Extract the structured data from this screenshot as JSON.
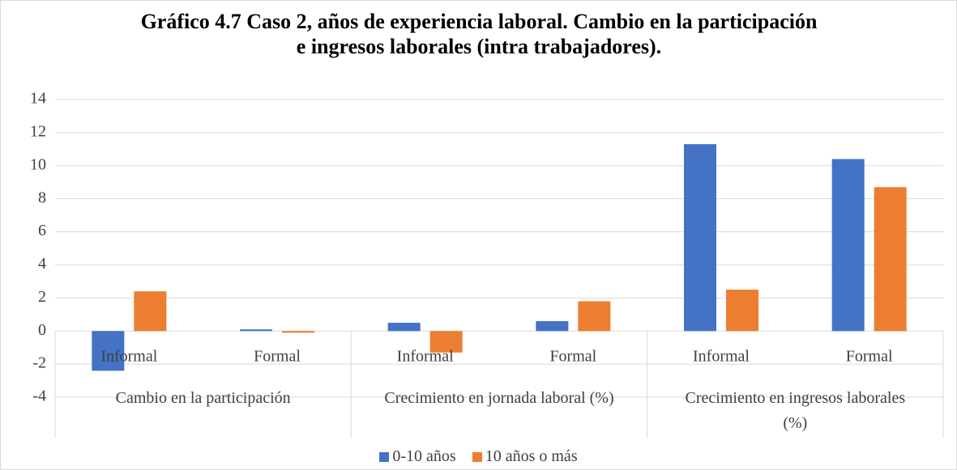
{
  "chart_data": {
    "type": "bar",
    "title": "Gráfico 4.7 Caso 2, años de experiencia laboral. Cambio en la participación e ingresos laborales (intra trabajadores).",
    "groups": [
      "Cambio en la participación",
      "Crecimiento en jornada laboral (%)",
      "Crecimiento en ingresos laborales (%)"
    ],
    "categories": [
      "Informal",
      "Formal",
      "Informal",
      "Formal",
      "Informal",
      "Formal"
    ],
    "series": [
      {
        "name": "0-10 años",
        "color": "#4472c4",
        "values": [
          -2.4,
          0.1,
          0.5,
          0.6,
          11.3,
          10.4
        ]
      },
      {
        "name": "10 años o más",
        "color": "#ed7d31",
        "values": [
          2.4,
          -0.1,
          -1.3,
          1.8,
          2.5,
          8.7
        ]
      }
    ],
    "ylim": [
      -4,
      14
    ],
    "yticks": [
      -4,
      -2,
      0,
      2,
      4,
      6,
      8,
      10,
      12,
      14
    ],
    "grid": true,
    "legend": "bottom"
  }
}
